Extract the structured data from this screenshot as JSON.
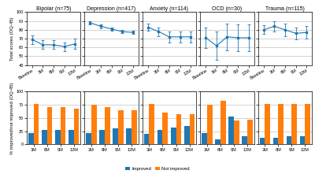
{
  "chart_data": [
    {
      "type": "line",
      "title": "Bipolar (n=75)",
      "categories": [
        "Baseline",
        "3M",
        "6M",
        "9M",
        "12M"
      ],
      "values": [
        69,
        63,
        63,
        61,
        64
      ],
      "ci_low": [
        64,
        58,
        58,
        56,
        58
      ],
      "ci_high": [
        74,
        68,
        68,
        66,
        70
      ],
      "ylim": [
        40,
        100
      ],
      "yticks": [
        40,
        50,
        60,
        70,
        80,
        90,
        100
      ],
      "grid": true,
      "y_label": "Total scores (OQ-45)"
    },
    {
      "type": "line",
      "title": "Depression (n=417)",
      "categories": [
        "Baseline",
        "3M",
        "6M",
        "9M",
        "12M"
      ],
      "values": [
        88,
        84,
        81,
        78,
        77
      ],
      "ci_low": [
        86,
        82,
        79,
        76,
        75
      ],
      "ci_high": [
        90,
        86,
        83,
        80,
        79
      ],
      "ylim": [
        40,
        100
      ],
      "yticks": [
        40,
        50,
        60,
        70,
        80,
        90,
        100
      ],
      "grid": true,
      "tick_labels": "x"
    },
    {
      "type": "line",
      "title": "Anxiety (n=114)",
      "categories": [
        "Baseline",
        "3M",
        "6M",
        "9M",
        "12M"
      ],
      "values": [
        83,
        78,
        72,
        72,
        72
      ],
      "ci_low": [
        79,
        73,
        66,
        66,
        66
      ],
      "ci_high": [
        87,
        83,
        78,
        78,
        78
      ],
      "ylim": [
        40,
        100
      ],
      "yticks": [
        40,
        50,
        60,
        70,
        80,
        90,
        100
      ],
      "grid": true,
      "tick_labels": "x"
    },
    {
      "type": "line",
      "title": "OCD (n=30)",
      "categories": [
        "Baseline",
        "3M",
        "6M",
        "9M",
        "12M"
      ],
      "values": [
        71,
        62,
        72,
        71,
        71
      ],
      "ci_low": [
        59,
        46,
        57,
        56,
        56
      ],
      "ci_high": [
        83,
        78,
        87,
        86,
        86
      ],
      "ylim": [
        40,
        100
      ],
      "yticks": [
        40,
        50,
        60,
        70,
        80,
        90,
        100
      ],
      "grid": true,
      "tick_labels": "x"
    },
    {
      "type": "line",
      "title": "Trauma (n=115)",
      "categories": [
        "Baseline",
        "3M",
        "6M",
        "9M",
        "12M"
      ],
      "values": [
        80,
        84,
        80,
        76,
        77
      ],
      "ci_low": [
        75,
        78,
        73,
        69,
        70
      ],
      "ci_high": [
        85,
        90,
        87,
        83,
        84
      ],
      "ylim": [
        40,
        100
      ],
      "yticks": [
        40,
        50,
        60,
        70,
        80,
        90,
        100
      ],
      "grid": true,
      "tick_labels": "x"
    },
    {
      "type": "bar",
      "categories": [
        "3M",
        "6M",
        "9M",
        "12M"
      ],
      "series": [
        {
          "name": "Improved",
          "values": [
            22,
            28,
            28,
            27
          ]
        },
        {
          "name": "Not improved",
          "values": [
            76,
            70,
            70,
            68
          ]
        }
      ],
      "ylim": [
        0,
        100
      ],
      "yticks": [
        0,
        25,
        50,
        75,
        100
      ],
      "grid": true,
      "legend": "lower center",
      "y_label": "% improved/not improved (OQ-45)"
    },
    {
      "type": "bar",
      "categories": [
        "3M",
        "6M",
        "9M",
        "12M"
      ],
      "series": [
        {
          "name": "Improved",
          "values": [
            22,
            27,
            30,
            30
          ]
        },
        {
          "name": "Not improved",
          "values": [
            75,
            70,
            65,
            65
          ]
        }
      ],
      "ylim": [
        0,
        100
      ],
      "yticks": [
        0,
        25,
        50,
        75,
        100
      ],
      "grid": true,
      "legend": "lower center",
      "tick_labels": "x"
    },
    {
      "type": "bar",
      "categories": [
        "3M",
        "6M",
        "9M",
        "12M"
      ],
      "series": [
        {
          "name": "Improved",
          "values": [
            20,
            27,
            32,
            35
          ]
        },
        {
          "name": "Not improved",
          "values": [
            76,
            60,
            57,
            57
          ]
        }
      ],
      "ylim": [
        0,
        100
      ],
      "yticks": [
        0,
        25,
        50,
        75,
        100
      ],
      "grid": true,
      "legend": "lower center",
      "tick_labels": "x"
    },
    {
      "type": "bar",
      "categories": [
        "3M",
        "6M",
        "9M",
        "12M"
      ],
      "series": [
        {
          "name": "Improved",
          "values": [
            22,
            10,
            53,
            15
          ]
        },
        {
          "name": "Not improved",
          "values": [
            75,
            83,
            45,
            47
          ]
        }
      ],
      "ylim": [
        0,
        100
      ],
      "yticks": [
        0,
        25,
        50,
        75,
        100
      ],
      "grid": true,
      "legend": "lower center",
      "tick_labels": "x"
    },
    {
      "type": "bar",
      "categories": [
        "3M",
        "6M",
        "9M",
        "12M"
      ],
      "series": [
        {
          "name": "Improved",
          "values": [
            12,
            13,
            15,
            15
          ]
        },
        {
          "name": "Not improved",
          "values": [
            77,
            76,
            76,
            76
          ]
        }
      ],
      "ylim": [
        0,
        100
      ],
      "yticks": [
        0,
        25,
        50,
        75,
        100
      ],
      "grid": true,
      "legend": "lower center",
      "tick_labels": "x"
    }
  ]
}
